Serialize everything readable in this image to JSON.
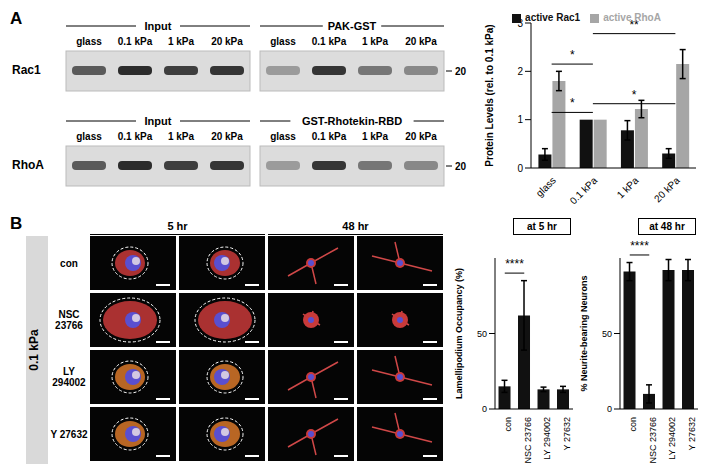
{
  "chart_data": [
    {
      "type": "bar",
      "categories": [
        "glass",
        "0.1 kPa",
        "1 kPa",
        "20 kPa"
      ],
      "series": [
        {
          "name": "active Rac1",
          "color": "#111111",
          "values": [
            0.28,
            1.0,
            0.78,
            0.3
          ],
          "errors": [
            0.12,
            0,
            0.2,
            0.1
          ]
        },
        {
          "name": "active RhoA",
          "color": "#a6a6a6",
          "values": [
            1.8,
            1.0,
            1.22,
            2.15
          ],
          "errors": [
            0.2,
            0,
            0.18,
            0.3
          ]
        }
      ],
      "y_label": "Protein Levels (rel. to 0.1 kPa)",
      "ylim": [
        0,
        3
      ],
      "yticks": [
        0,
        1,
        2,
        3
      ],
      "legend": "top",
      "annotations": [
        {
          "text": "*",
          "series": "active Rac1",
          "from": "glass",
          "to": "0.1 kPa"
        },
        {
          "text": "*",
          "series": "active Rac1",
          "from": "0.1 kPa",
          "to": "20 kPa"
        },
        {
          "text": "*",
          "series": "active RhoA",
          "from": "glass",
          "to": "0.1 kPa"
        },
        {
          "text": "**",
          "series": "active RhoA",
          "from": "0.1 kPa",
          "to": "20 kPa"
        }
      ]
    },
    {
      "type": "bar",
      "title": "at 5 hr",
      "categories": [
        "con",
        "NSC 23766",
        "LY 294002",
        "Y 27632"
      ],
      "values": [
        15,
        62,
        13,
        13
      ],
      "errors": [
        4,
        23,
        1.5,
        2
      ],
      "color": "#111111",
      "y_label": "Lamellipodium Occupancy (%)",
      "ylim": [
        0,
        100
      ],
      "yticks": [
        0,
        50
      ],
      "annotations": [
        {
          "text": "****",
          "from": "con",
          "to": "NSC 23766"
        }
      ]
    },
    {
      "type": "bar",
      "title": "at 48 hr",
      "categories": [
        "con",
        "NSC 23766",
        "LY 294002",
        "Y 27632"
      ],
      "values": [
        91,
        10,
        92,
        92
      ],
      "errors": [
        6,
        6,
        7,
        7
      ],
      "color": "#111111",
      "y_label": "% Neurite-bearing Neurons",
      "ylim": [
        0,
        100
      ],
      "yticks": [
        0,
        50
      ],
      "annotations": [
        {
          "text": "****",
          "from": "con",
          "to": "NSC 23766"
        }
      ]
    }
  ],
  "figure": {
    "panels": [
      "A",
      "B"
    ],
    "blots": [
      {
        "left_title": "Input",
        "right_title": "PAK-GST",
        "lanes": [
          "glass",
          "0.1 kPa",
          "1 kPa",
          "20 kPa"
        ],
        "protein": "Rac1",
        "mw": 20
      },
      {
        "left_title": "Input",
        "right_title": "GST-Rhotekin-RBD",
        "lanes": [
          "glass",
          "0.1 kPa",
          "1 kPa",
          "20 kPa"
        ],
        "protein": "RhoA",
        "mw": 20
      }
    ],
    "micrographs": {
      "condition": "0.1 kPa",
      "timepoints": [
        "5 hr",
        "48 hr"
      ],
      "rows": [
        "con",
        "NSC 23766",
        "LY 294002",
        "Y 27632"
      ]
    }
  }
}
